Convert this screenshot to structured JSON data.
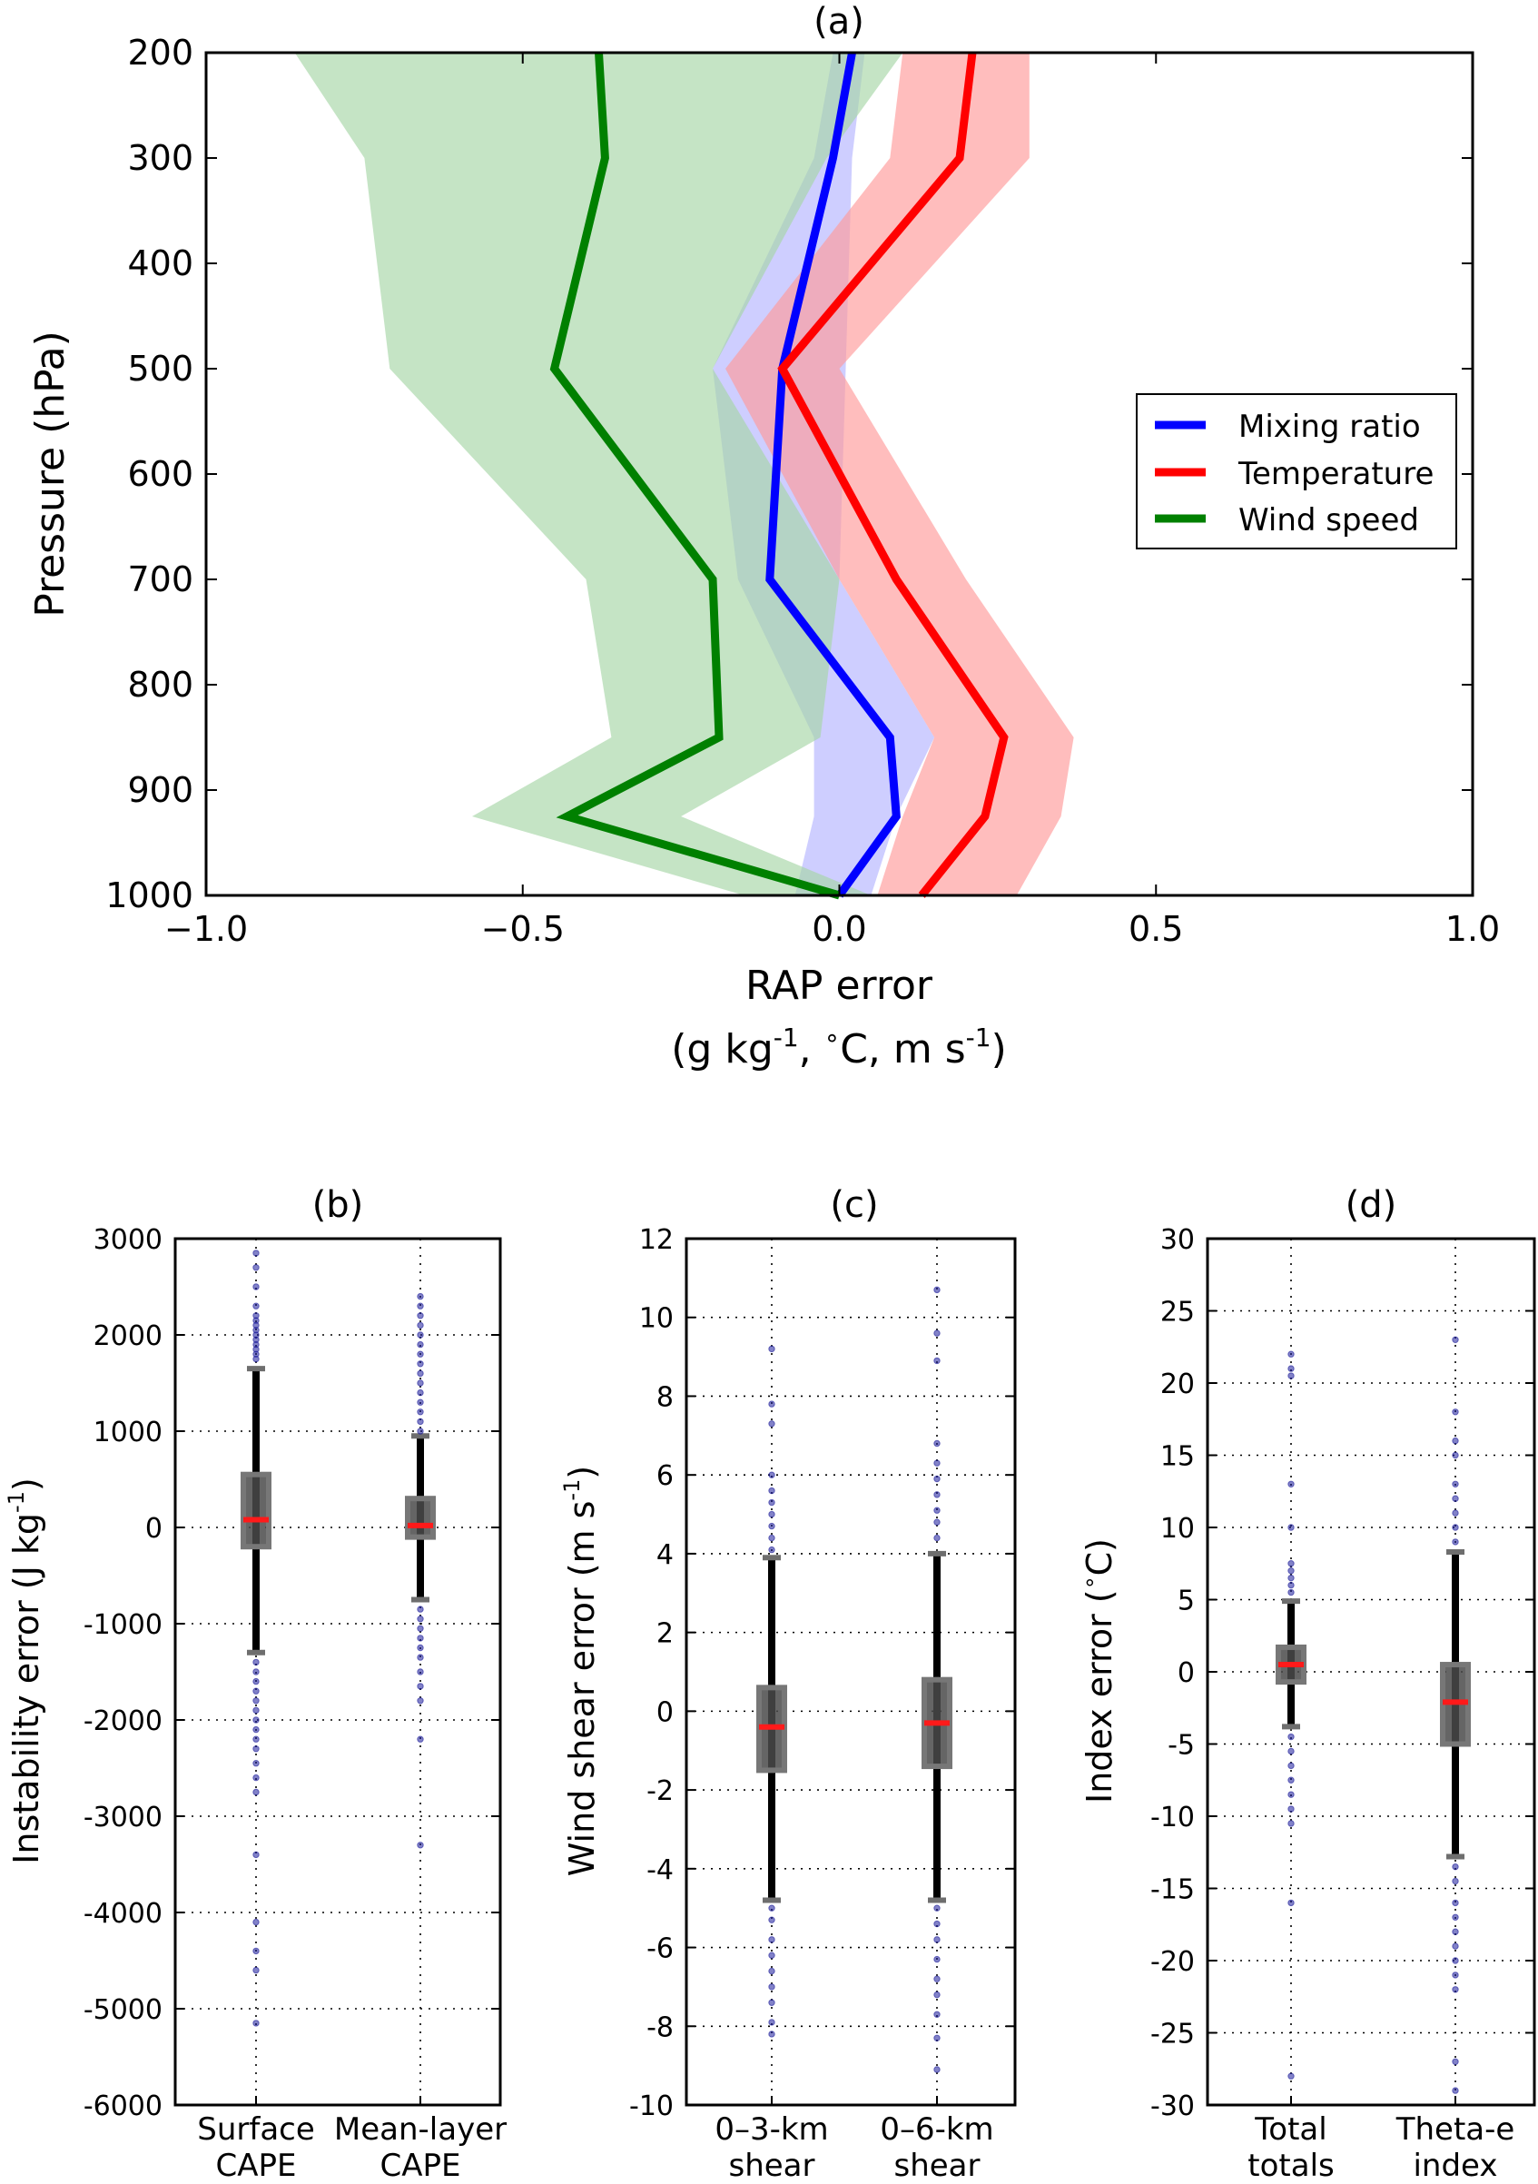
{
  "chart_data": [
    {
      "id": "a",
      "type": "line",
      "panel_label": "(a)",
      "title": "(a)",
      "xlabel": "RAP error",
      "xlabel_units": "(g kg-1, °C, m s-1)",
      "ylabel": "Pressure (hPa)",
      "xlim": [
        -1.0,
        1.0
      ],
      "ylim": [
        1000,
        200
      ],
      "x_ticks": [
        "−1.0",
        "−0.5",
        "0.0",
        "0.5",
        "1.0"
      ],
      "y_ticks": [
        "200",
        "300",
        "400",
        "500",
        "600",
        "700",
        "800",
        "900",
        "1000"
      ],
      "pressure_levels": [
        200,
        300,
        500,
        700,
        850,
        925,
        1000
      ],
      "legend": {
        "position": "right",
        "entries": [
          "Mixing ratio",
          "Temperature",
          "Wind speed"
        ]
      },
      "series": [
        {
          "name": "Mixing ratio",
          "color": "#0000ff",
          "band_color": "#b3b3ff",
          "values": [
            0.02,
            -0.01,
            -0.09,
            -0.11,
            0.08,
            0.09,
            0.0
          ],
          "band_low": [
            -0.01,
            -0.04,
            -0.2,
            -0.16,
            -0.04,
            -0.04,
            -0.07
          ],
          "band_high": [
            0.04,
            0.02,
            0.01,
            0.0,
            0.15,
            0.09,
            0.05
          ]
        },
        {
          "name": "Temperature",
          "color": "#ff0000",
          "band_color": "#ff9999",
          "values": [
            0.21,
            0.19,
            -0.09,
            0.09,
            0.26,
            0.23,
            0.13
          ],
          "band_low": [
            0.1,
            0.08,
            -0.18,
            0.0,
            0.15,
            0.1,
            0.06
          ],
          "band_high": [
            0.3,
            0.3,
            0.0,
            0.2,
            0.37,
            0.35,
            0.28
          ]
        },
        {
          "name": "Wind speed",
          "color": "#008000",
          "band_color": "#a6d6a6",
          "values": [
            -0.38,
            -0.37,
            -0.45,
            -0.2,
            -0.19,
            -0.43,
            0.0
          ],
          "band_low": [
            -0.86,
            -0.75,
            -0.71,
            -0.4,
            -0.36,
            -0.58,
            -0.15
          ],
          "band_high": [
            0.1,
            -0.02,
            -0.2,
            0.0,
            -0.03,
            -0.25,
            0.05
          ]
        }
      ]
    },
    {
      "id": "b",
      "type": "boxplot",
      "title": "(b)",
      "ylabel": "Instability error (J kg-1)",
      "ylim": [
        -6000,
        3000
      ],
      "y_ticks": [
        "3000",
        "2000",
        "1000",
        "0",
        "-1000",
        "-2000",
        "-3000",
        "-4000",
        "-5000",
        "-6000"
      ],
      "categories": [
        "Surface CAPE",
        "Mean-layer CAPE"
      ],
      "boxes": [
        {
          "label": "Surface CAPE",
          "median": 80,
          "q1": -200,
          "q3": 550,
          "whisker_low": -1300,
          "whisker_high": 1650,
          "outliers": [
            2850,
            2700,
            2500,
            2300,
            2200,
            2150,
            2100,
            2050,
            2000,
            1950,
            1900,
            1850,
            1800,
            1750,
            -1400,
            -1500,
            -1600,
            -1700,
            -1800,
            -1900,
            -2000,
            -2100,
            -2200,
            -2300,
            -2450,
            -2600,
            -2750,
            -3400,
            -4100,
            -4400,
            -4600,
            -5150
          ]
        },
        {
          "label": "Mean-layer CAPE",
          "median": 20,
          "q1": -100,
          "q3": 300,
          "whisker_low": -750,
          "whisker_high": 950,
          "outliers": [
            2400,
            2300,
            2200,
            2100,
            2000,
            1900,
            1800,
            1700,
            1600,
            1500,
            1400,
            1300,
            1200,
            1100,
            1000,
            -850,
            -950,
            -1050,
            -1150,
            -1250,
            -1350,
            -1500,
            -1650,
            -1800,
            -2200,
            -3300
          ]
        }
      ]
    },
    {
      "id": "c",
      "type": "boxplot",
      "title": "(c)",
      "ylabel": "Wind shear error (m s-1)",
      "ylim": [
        -10,
        12
      ],
      "y_ticks": [
        "12",
        "10",
        "8",
        "6",
        "4",
        "2",
        "0",
        "-2",
        "-4",
        "-6",
        "-8",
        "-10"
      ],
      "categories": [
        "0–3-km shear",
        "0–6-km shear"
      ],
      "boxes": [
        {
          "label": "0–3-km shear",
          "median": -0.4,
          "q1": -1.5,
          "q3": 0.6,
          "whisker_low": -4.8,
          "whisker_high": 3.9,
          "outliers": [
            9.2,
            7.8,
            7.3,
            6.0,
            5.6,
            5.3,
            5.0,
            4.7,
            4.4,
            4.1,
            -5.0,
            -5.3,
            -5.8,
            -6.2,
            -6.6,
            -7.0,
            -7.4,
            -7.9,
            -8.2
          ]
        },
        {
          "label": "0–6-km shear",
          "median": -0.3,
          "q1": -1.4,
          "q3": 0.8,
          "whisker_low": -4.8,
          "whisker_high": 4.0,
          "outliers": [
            10.7,
            9.6,
            8.9,
            6.8,
            6.3,
            5.9,
            5.5,
            5.1,
            4.8,
            4.4,
            -5.0,
            -5.4,
            -5.8,
            -6.3,
            -6.8,
            -7.2,
            -7.7,
            -8.3,
            -9.1
          ]
        }
      ]
    },
    {
      "id": "d",
      "type": "boxplot",
      "title": "(d)",
      "ylabel": "Index error (°C)",
      "ylim": [
        -30,
        30
      ],
      "y_ticks": [
        "30",
        "25",
        "20",
        "15",
        "10",
        "5",
        "0",
        "-5",
        "-10",
        "-15",
        "-20",
        "-25",
        "-30"
      ],
      "categories": [
        "Total totals",
        "Theta-e index"
      ],
      "boxes": [
        {
          "label": "Total totals",
          "median": 0.5,
          "q1": -0.7,
          "q3": 1.7,
          "whisker_low": -3.8,
          "whisker_high": 4.9,
          "outliers": [
            22,
            21,
            20.5,
            13,
            10,
            7.5,
            7,
            6.5,
            6,
            5.5,
            -4.5,
            -5.5,
            -6.5,
            -7.5,
            -8.5,
            -9.5,
            -10.5,
            -16,
            -28
          ]
        },
        {
          "label": "Theta-e index",
          "median": -2.1,
          "q1": -5,
          "q3": 0.5,
          "whisker_low": -12.8,
          "whisker_high": 8.3,
          "outliers": [
            23,
            18,
            16,
            15,
            13,
            12,
            11,
            10,
            9,
            -13.5,
            -14.5,
            -16,
            -17,
            -18,
            -19,
            -20,
            -21,
            -22,
            -27,
            -29
          ]
        }
      ]
    }
  ]
}
